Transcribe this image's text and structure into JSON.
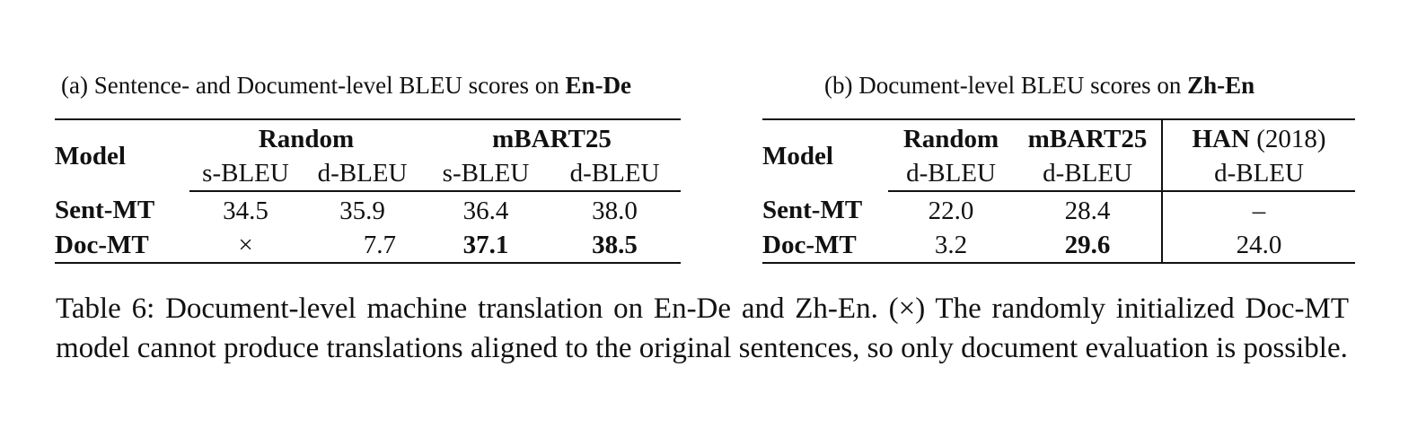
{
  "subcaption_a": {
    "prefix": "(a) Sentence- and Document-level BLEU scores on",
    "bold": "En-De"
  },
  "subcaption_b": {
    "prefix": "(b) Document-level BLEU scores on",
    "bold": "Zh-En"
  },
  "table_a": {
    "model_header": "Model",
    "groups": [
      "Random",
      "mBART25"
    ],
    "subheaders": [
      "s-BLEU",
      "d-BLEU",
      "s-BLEU",
      "d-BLEU"
    ],
    "rows": [
      {
        "label": "Sent-MT",
        "cells": [
          "34.5",
          "35.9",
          "36.4",
          "38.0"
        ]
      },
      {
        "label": "Doc-MT",
        "cells": [
          "×",
          "7.7",
          "37.1",
          "38.5"
        ]
      }
    ]
  },
  "table_b": {
    "model_header": "Model",
    "groups": [
      "Random",
      "mBART25"
    ],
    "han_bold": "HAN",
    "han_cite": "(2018)",
    "subheaders": [
      "d-BLEU",
      "d-BLEU",
      "d-BLEU"
    ],
    "rows": [
      {
        "label": "Sent-MT",
        "cells": [
          "22.0",
          "28.4",
          "–"
        ]
      },
      {
        "label": "Doc-MT",
        "cells": [
          "3.2",
          "29.6",
          "24.0"
        ]
      }
    ]
  },
  "main_caption": "Table 6: Document-level machine translation on En-De and Zh-En. (×) The randomly initialized Doc-MT model cannot produce translations aligned to the original sentences, so only document evaluation is possible."
}
